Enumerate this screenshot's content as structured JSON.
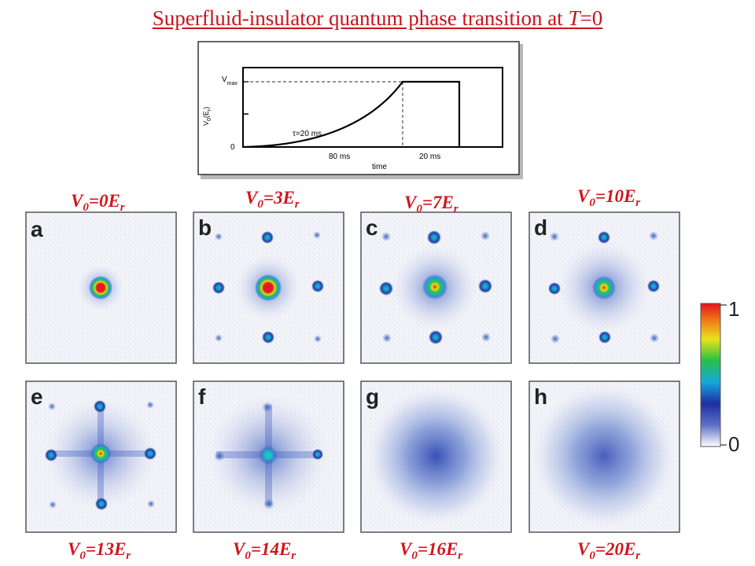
{
  "title": {
    "prefix": "Superfluid-insulator quantum phase transition at ",
    "T": "T",
    "suffix": "=0"
  },
  "ramp_plot": {
    "ylabel": "V",
    "ylabel_sub": "0",
    "ylabel_unit": "(E",
    "ylabel_unit_sub": "r",
    "ylabel_unit_close": ")",
    "vmax_label": "V",
    "vmax_sub": "max",
    "zero_label": "0",
    "tau_label": "τ=20 ms",
    "ramp_duration_label": "80 ms",
    "hold_duration_label": "20 ms",
    "xlabel": "time"
  },
  "panels": [
    {
      "letter": "a",
      "label_prefix": "V",
      "label_sub": "0",
      "label_mid": "=0E",
      "label_sub2": "r"
    },
    {
      "letter": "b",
      "label_prefix": "V",
      "label_sub": "0",
      "label_mid": "=3E",
      "label_sub2": "r"
    },
    {
      "letter": "c",
      "label_prefix": "V",
      "label_sub": "0",
      "label_mid": "=7E",
      "label_sub2": "r"
    },
    {
      "letter": "d",
      "label_prefix": "V",
      "label_sub": "0",
      "label_mid": "=10E",
      "label_sub2": "r"
    },
    {
      "letter": "e",
      "label_prefix": "V",
      "label_sub": "0",
      "label_mid": "=13E",
      "label_sub2": "r"
    },
    {
      "letter": "f",
      "label_prefix": "V",
      "label_sub": "0",
      "label_mid": "=14E",
      "label_sub2": "r"
    },
    {
      "letter": "g",
      "label_prefix": "V",
      "label_sub": "0",
      "label_mid": "=16E",
      "label_sub2": "r"
    },
    {
      "letter": "h",
      "label_prefix": "V",
      "label_sub": "0",
      "label_mid": "=20E",
      "label_sub2": "r"
    }
  ],
  "colorbar": {
    "max_label": "1",
    "min_label": "0"
  }
}
